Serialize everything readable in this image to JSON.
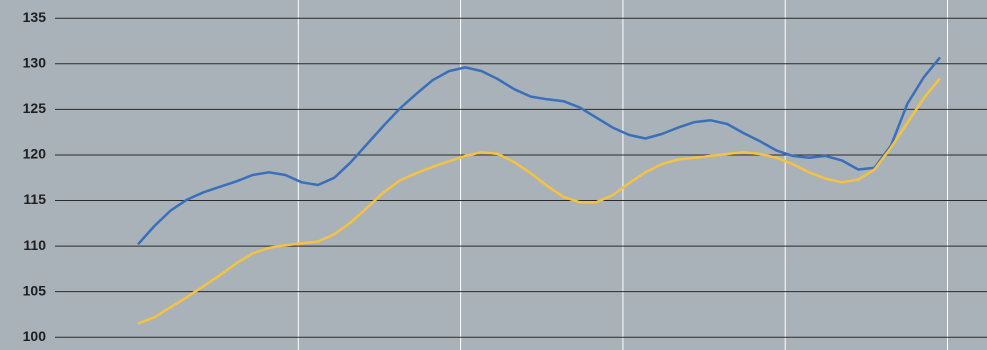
{
  "chart_data": {
    "type": "line",
    "ylim": [
      98.6,
      137
    ],
    "yticks": [
      100,
      105,
      110,
      115,
      120,
      125,
      130,
      135
    ],
    "grid": true,
    "series": [
      {
        "color": "#3a6fba",
        "values": [
          110.2,
          112.2,
          113.9,
          115.1,
          115.9,
          116.5,
          117.1,
          117.8,
          118.1,
          117.8,
          117.0,
          116.7,
          117.5,
          119.2,
          121.2,
          123.2,
          125.1,
          126.7,
          128.2,
          129.2,
          129.6,
          129.2,
          128.3,
          127.2,
          126.4,
          126.1,
          125.9,
          125.2,
          124.1,
          123.0,
          122.2,
          121.8,
          122.3,
          123.0,
          123.6,
          123.8,
          123.4,
          122.4,
          121.5,
          120.5,
          119.9,
          119.7,
          119.9,
          119.4,
          118.4,
          118.6,
          121.0,
          125.6,
          128.5,
          130.7
        ]
      },
      {
        "color": "#f5c242",
        "values": [
          101.5,
          102.2,
          103.3,
          104.4,
          105.6,
          106.8,
          108.1,
          109.2,
          109.8,
          110.1,
          110.3,
          110.5,
          111.3,
          112.6,
          114.2,
          115.9,
          117.2,
          118.0,
          118.7,
          119.3,
          119.9,
          120.3,
          120.1,
          119.2,
          118.0,
          116.6,
          115.4,
          114.8,
          114.8,
          115.6,
          116.9,
          118.1,
          119.0,
          119.5,
          119.7,
          119.9,
          120.1,
          120.3,
          120.1,
          119.7,
          119.0,
          118.1,
          117.4,
          117.0,
          117.3,
          118.4,
          120.8,
          123.5,
          126.2,
          128.4
        ]
      }
    ]
  }
}
